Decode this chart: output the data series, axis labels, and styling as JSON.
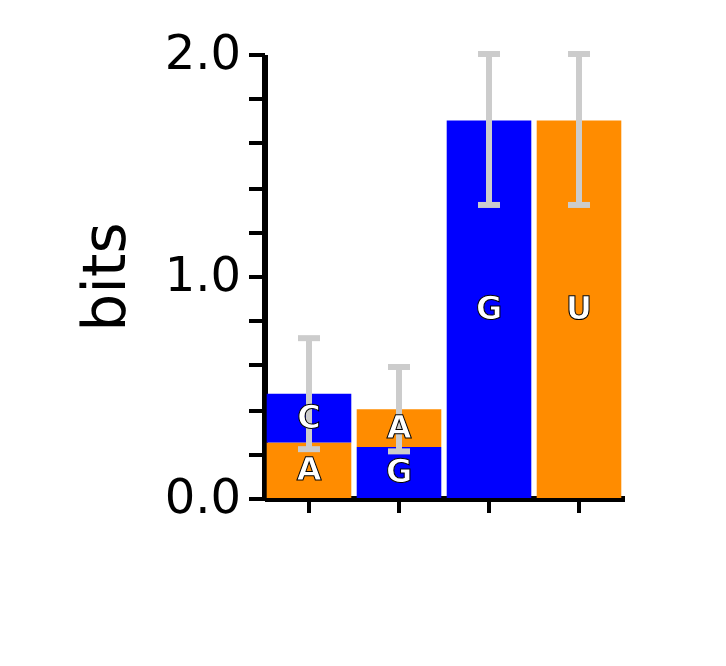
{
  "chart_data": {
    "type": "bar",
    "stacked": true,
    "ylabel": "bits",
    "categories": [
      null,
      null,
      null,
      null
    ],
    "ylim": [
      0,
      2.0
    ],
    "yticks": [
      {
        "value": 0,
        "label": "0.0"
      },
      {
        "value": 0.2,
        "label": null
      },
      {
        "value": 0.4,
        "label": null
      },
      {
        "value": 0.6,
        "label": null
      },
      {
        "value": 0.8,
        "label": null
      },
      {
        "value": 1.0,
        "label": "1.0"
      },
      {
        "value": 1.2,
        "label": null
      },
      {
        "value": 1.4,
        "label": null
      },
      {
        "value": 1.6,
        "label": null
      },
      {
        "value": 1.8,
        "label": null
      },
      {
        "value": 2.0,
        "label": "2.0"
      }
    ],
    "tick_labels": "y",
    "grid": false,
    "series": [
      {
        "values": [
          0.25,
          0.23,
          1.7,
          1.7
        ],
        "colors": [
          "#ff8c00",
          "#0000ff",
          "#0000ff",
          "#ff8c00"
        ],
        "value_labels": [
          "A",
          "G",
          "G",
          "U"
        ],
        "errors": [
          null,
          null,
          [
            1.32,
            2.0
          ],
          [
            1.32,
            2.0
          ]
        ]
      },
      {
        "values": [
          0.22,
          0.17,
          null,
          null
        ],
        "colors": [
          "#0000ff",
          "#ff8c00",
          null,
          null
        ],
        "value_labels": [
          "C",
          "A",
          null,
          null
        ],
        "errors": [
          0.25,
          0.19,
          null,
          null
        ]
      }
    ]
  }
}
